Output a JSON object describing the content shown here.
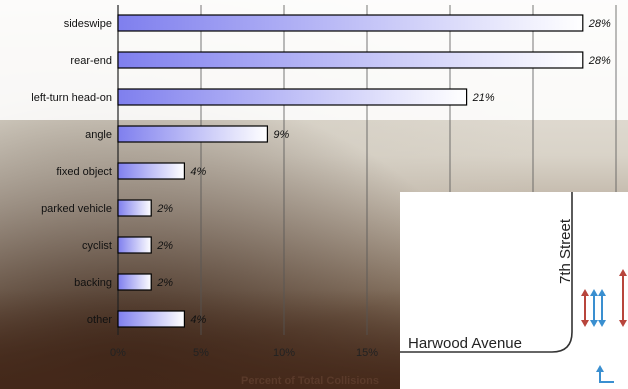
{
  "chart_data": {
    "type": "bar",
    "orientation": "horizontal",
    "categories": [
      "sideswipe",
      "rear-end",
      "left-turn head-on",
      "angle",
      "fixed object",
      "parked vehicle",
      "cyclist",
      "backing",
      "other"
    ],
    "values": [
      28,
      28,
      21,
      9,
      4,
      2,
      2,
      2,
      4
    ],
    "value_labels": [
      "28%",
      "28%",
      "21%",
      "9%",
      "4%",
      "2%",
      "2%",
      "2%",
      "4%"
    ],
    "xlabel": "Percent of Total Collisions",
    "x_ticks": [
      "0%",
      "5%",
      "10%",
      "15%"
    ],
    "xlim": [
      0,
      30
    ],
    "grid": true,
    "bar_color": "#8c8cf0"
  },
  "map_inset": {
    "street_vertical": "7th Street",
    "street_horizontal": "Harwood Avenue"
  },
  "colors": {
    "arrow_red": "#b8453c",
    "arrow_blue": "#3a8fd0"
  }
}
